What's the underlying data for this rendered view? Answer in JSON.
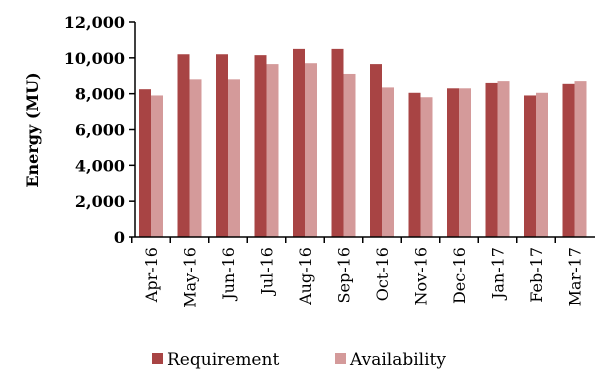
{
  "chart_data": {
    "type": "bar",
    "title": "",
    "xlabel": "",
    "ylabel": "Energy (MU)",
    "ylim": [
      0,
      12000
    ],
    "yticks": [
      0,
      2000,
      4000,
      6000,
      8000,
      10000,
      12000
    ],
    "ytick_labels": [
      "0",
      "2,000",
      "4,000",
      "6,000",
      "8,000",
      "10,000",
      "12,000"
    ],
    "grid": false,
    "legend_position": "bottom",
    "categories": [
      "Apr-16",
      "May-16",
      "Jun-16",
      "Jul-16",
      "Aug-16",
      "Sep-16",
      "Oct-16",
      "Nov-16",
      "Dec-16",
      "Jan-17",
      "Feb-17",
      "Mar-17"
    ],
    "series": [
      {
        "name": "Requirement",
        "color": "#a84444",
        "values": [
          8250,
          10200,
          10200,
          10150,
          10500,
          10500,
          9650,
          8050,
          8300,
          8600,
          7900,
          8550
        ]
      },
      {
        "name": "Availability",
        "color": "#d49a9a",
        "values": [
          7900,
          8800,
          8800,
          9650,
          9700,
          9100,
          8350,
          7800,
          8300,
          8700,
          8050,
          8700
        ]
      }
    ]
  }
}
